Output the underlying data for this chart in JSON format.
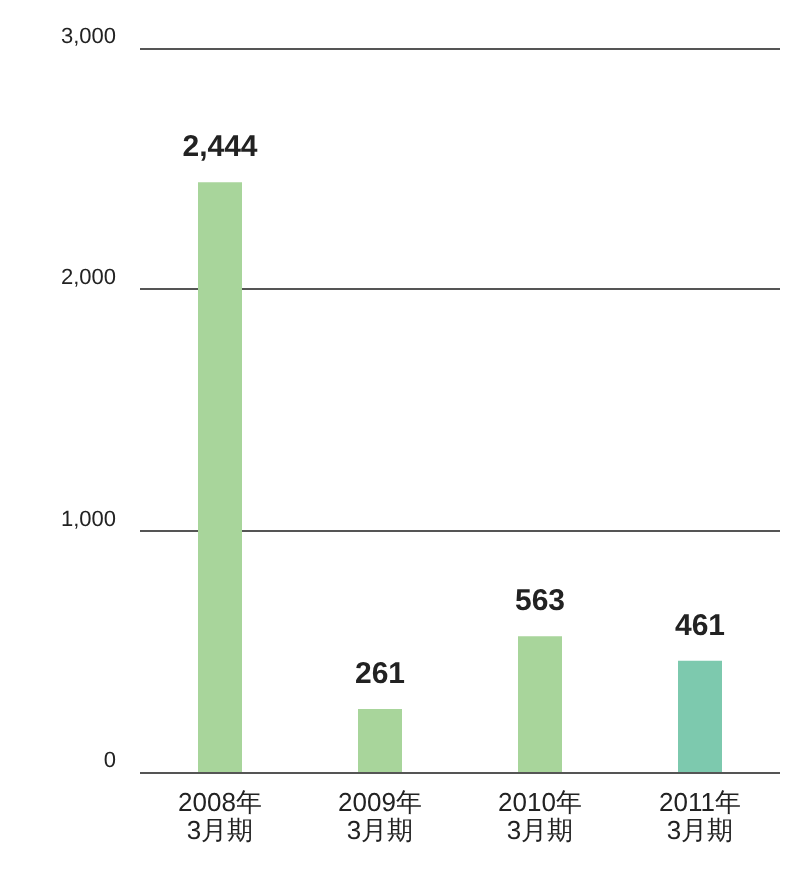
{
  "chart_data": {
    "type": "bar",
    "categories": [
      "2008年\n3月期",
      "2009年\n3月期",
      "2010年\n3月期",
      "2011年\n3月期"
    ],
    "values": [
      2444,
      261,
      563,
      461
    ],
    "colors": [
      "#a8d59b",
      "#a8d59b",
      "#a8d59b",
      "#7dc9ae"
    ],
    "ylim": [
      0,
      3000
    ],
    "yticks": [
      0,
      {
        "value": 1000,
        "label": "1,000"
      },
      {
        "value": 2000,
        "label": "2,000"
      },
      {
        "value": 3000,
        "label": "3,000"
      }
    ],
    "grid": "y",
    "data_labels": true,
    "value_labels": [
      "2,444",
      "261",
      "563",
      "461"
    ]
  }
}
